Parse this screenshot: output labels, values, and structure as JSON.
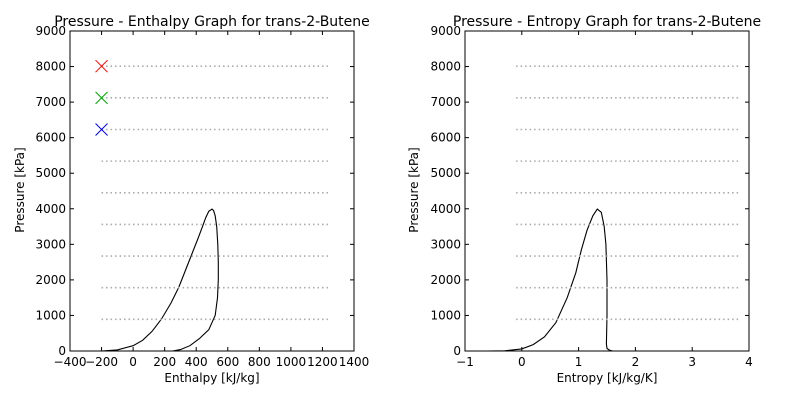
{
  "chart_data": [
    {
      "type": "line",
      "title": "Pressure - Enthalpy Graph for trans-2-Butene",
      "xlabel": "Enthalpy [kJ/kg]",
      "ylabel": "Pressure [kPa]",
      "xlim": [
        -400,
        1400
      ],
      "ylim": [
        0,
        9000
      ],
      "xticks": [
        -400,
        -200,
        0,
        200,
        400,
        600,
        800,
        1000,
        1200,
        1400
      ],
      "xtick_labels": [
        "−400",
        "−200",
        "0",
        "200",
        "400",
        "600",
        "800",
        "1000",
        "1200",
        "1400"
      ],
      "yticks": [
        0,
        1000,
        2000,
        3000,
        4000,
        5000,
        6000,
        7000,
        8000,
        9000
      ],
      "ytick_labels": [
        "0",
        "1000",
        "2000",
        "3000",
        "4000",
        "5000",
        "6000",
        "7000",
        "8000",
        "9000"
      ],
      "grid": false,
      "series": [
        {
          "kind": "curve",
          "color": "#000000",
          "x": [
            -200,
            -100,
            0,
            60,
            120,
            180,
            240,
            290,
            330,
            370,
            410,
            440,
            460,
            480,
            500,
            510,
            520,
            530,
            537,
            540,
            540,
            535,
            520,
            480,
            420,
            360,
            300,
            250
          ],
          "y": [
            0,
            30,
            150,
            300,
            550,
            900,
            1350,
            1800,
            2250,
            2700,
            3150,
            3500,
            3750,
            3930,
            3990,
            3950,
            3800,
            3500,
            3000,
            2500,
            2000,
            1500,
            1000,
            600,
            350,
            150,
            40,
            0
          ]
        },
        {
          "kind": "isobars",
          "color": "#aaaaaa",
          "dash": "dotted",
          "x_range": [
            -200,
            1250
          ],
          "y": [
            890,
            1780,
            2670,
            3560,
            4450,
            5340,
            6230,
            7120,
            8010
          ]
        },
        {
          "kind": "markers",
          "marker": "x",
          "points": [
            {
              "x": -200,
              "y": 8010,
              "color": "#ff0000"
            },
            {
              "x": -200,
              "y": 7120,
              "color": "#00aa00"
            },
            {
              "x": -200,
              "y": 6230,
              "color": "#0000ff"
            }
          ]
        }
      ]
    },
    {
      "type": "line",
      "title": "Pressure - Entropy Graph for trans-2-Butene",
      "xlabel": "Entropy [kJ/kg/K]",
      "ylabel": "Pressure [kPa]",
      "xlim": [
        -1,
        4
      ],
      "ylim": [
        0,
        9000
      ],
      "xticks": [
        -1,
        0,
        1,
        2,
        3,
        4
      ],
      "xtick_labels": [
        "−1",
        "0",
        "1",
        "2",
        "3",
        "4"
      ],
      "yticks": [
        0,
        1000,
        2000,
        3000,
        4000,
        5000,
        6000,
        7000,
        8000,
        9000
      ],
      "ytick_labels": [
        "0",
        "1000",
        "2000",
        "3000",
        "4000",
        "5000",
        "6000",
        "7000",
        "8000",
        "9000"
      ],
      "grid": false,
      "series": [
        {
          "kind": "curve",
          "color": "#000000",
          "x": [
            -1,
            -0.6,
            -0.3,
            0,
            0.2,
            0.4,
            0.6,
            0.8,
            0.95,
            1.05,
            1.15,
            1.25,
            1.33,
            1.4,
            1.45,
            1.48,
            1.5,
            1.5,
            1.49,
            1.5,
            1.55,
            1.6
          ],
          "y": [
            0,
            0,
            5,
            60,
            180,
            400,
            800,
            1500,
            2200,
            2850,
            3400,
            3800,
            3990,
            3900,
            3500,
            3000,
            2000,
            1000,
            200,
            70,
            20,
            0
          ]
        },
        {
          "kind": "isobars",
          "color": "#aaaaaa",
          "dash": "dotted",
          "x_range": [
            -0.1,
            3.85
          ],
          "y": [
            890,
            1780,
            2670,
            3560,
            4450,
            5340,
            6230,
            7120,
            8010
          ]
        }
      ]
    }
  ]
}
